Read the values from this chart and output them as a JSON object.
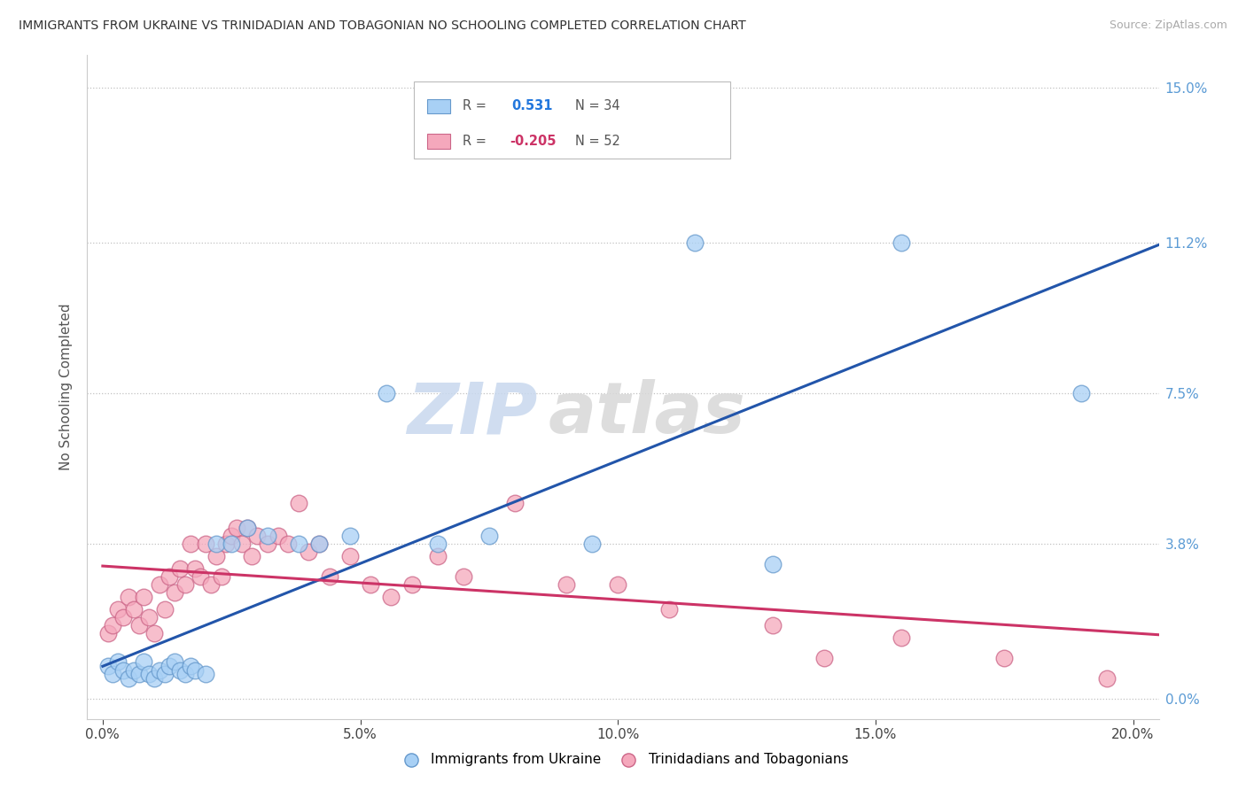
{
  "title": "IMMIGRANTS FROM UKRAINE VS TRINIDADIAN AND TOBAGONIAN NO SCHOOLING COMPLETED CORRELATION CHART",
  "source": "Source: ZipAtlas.com",
  "ylabel": "No Schooling Completed",
  "xlabel_ticks": [
    "0.0%",
    "5.0%",
    "10.0%",
    "15.0%",
    "20.0%"
  ],
  "xlabel_vals": [
    0.0,
    0.05,
    0.1,
    0.15,
    0.2
  ],
  "ylabel_ticks": [
    "0.0%",
    "3.8%",
    "7.5%",
    "11.2%",
    "15.0%"
  ],
  "ylabel_vals": [
    0.0,
    0.038,
    0.075,
    0.112,
    0.15
  ],
  "xlim": [
    -0.003,
    0.205
  ],
  "ylim": [
    -0.005,
    0.158
  ],
  "ukraine_color": "#A8D0F5",
  "trinidad_color": "#F5A8BC",
  "ukraine_edge": "#6699CC",
  "trinidad_edge": "#CC6688",
  "trend_ukraine_color": "#2255AA",
  "trend_trinidad_color": "#CC3366",
  "R_ukraine": 0.531,
  "N_ukraine": 34,
  "R_trinidad": -0.205,
  "N_trinidad": 52,
  "legend_label1": "Immigrants from Ukraine",
  "legend_label2": "Trinidadians and Tobagonians",
  "watermark_zip": "ZIP",
  "watermark_atlas": "atlas",
  "ukraine_x": [
    0.001,
    0.002,
    0.003,
    0.004,
    0.005,
    0.006,
    0.007,
    0.008,
    0.009,
    0.01,
    0.011,
    0.012,
    0.013,
    0.014,
    0.015,
    0.016,
    0.017,
    0.018,
    0.02,
    0.022,
    0.025,
    0.028,
    0.032,
    0.038,
    0.042,
    0.048,
    0.055,
    0.065,
    0.075,
    0.095,
    0.115,
    0.13,
    0.155,
    0.19
  ],
  "ukraine_y": [
    0.008,
    0.006,
    0.009,
    0.007,
    0.005,
    0.007,
    0.006,
    0.009,
    0.006,
    0.005,
    0.007,
    0.006,
    0.008,
    0.009,
    0.007,
    0.006,
    0.008,
    0.007,
    0.006,
    0.038,
    0.038,
    0.042,
    0.04,
    0.038,
    0.038,
    0.04,
    0.075,
    0.038,
    0.04,
    0.038,
    0.112,
    0.033,
    0.112,
    0.075
  ],
  "trinidad_x": [
    0.001,
    0.002,
    0.003,
    0.004,
    0.005,
    0.006,
    0.007,
    0.008,
    0.009,
    0.01,
    0.011,
    0.012,
    0.013,
    0.014,
    0.015,
    0.016,
    0.017,
    0.018,
    0.019,
    0.02,
    0.021,
    0.022,
    0.023,
    0.024,
    0.025,
    0.026,
    0.027,
    0.028,
    0.029,
    0.03,
    0.032,
    0.034,
    0.036,
    0.038,
    0.04,
    0.042,
    0.044,
    0.048,
    0.052,
    0.056,
    0.06,
    0.065,
    0.07,
    0.08,
    0.09,
    0.1,
    0.11,
    0.13,
    0.14,
    0.155,
    0.175,
    0.195
  ],
  "trinidad_y": [
    0.016,
    0.018,
    0.022,
    0.02,
    0.025,
    0.022,
    0.018,
    0.025,
    0.02,
    0.016,
    0.028,
    0.022,
    0.03,
    0.026,
    0.032,
    0.028,
    0.038,
    0.032,
    0.03,
    0.038,
    0.028,
    0.035,
    0.03,
    0.038,
    0.04,
    0.042,
    0.038,
    0.042,
    0.035,
    0.04,
    0.038,
    0.04,
    0.038,
    0.048,
    0.036,
    0.038,
    0.03,
    0.035,
    0.028,
    0.025,
    0.028,
    0.035,
    0.03,
    0.048,
    0.028,
    0.028,
    0.022,
    0.018,
    0.01,
    0.015,
    0.01,
    0.005
  ]
}
